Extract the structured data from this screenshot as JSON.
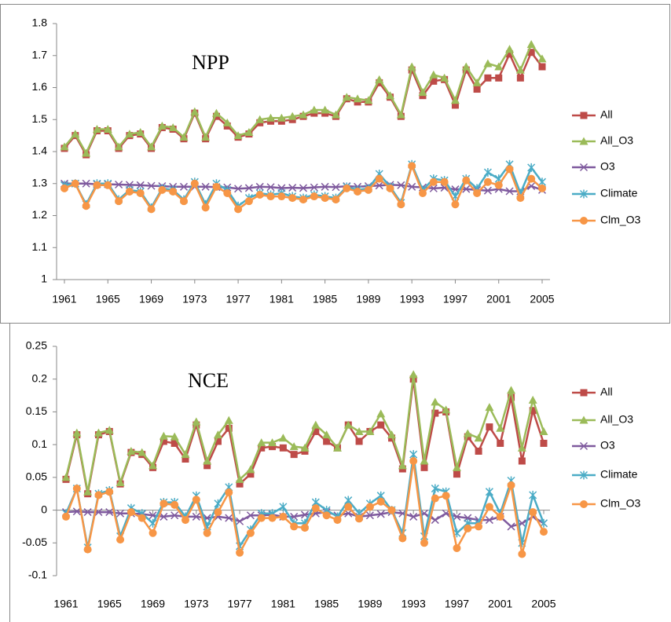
{
  "chart_data": [
    {
      "type": "line",
      "title": "NPP",
      "x": [
        1961,
        1962,
        1963,
        1964,
        1965,
        1966,
        1967,
        1968,
        1969,
        1970,
        1971,
        1972,
        1973,
        1974,
        1975,
        1976,
        1977,
        1978,
        1979,
        1980,
        1981,
        1982,
        1983,
        1984,
        1985,
        1986,
        1987,
        1988,
        1989,
        1990,
        1991,
        1992,
        1993,
        1994,
        1995,
        1996,
        1997,
        1998,
        1999,
        2000,
        2001,
        2002,
        2003,
        2004,
        2005
      ],
      "xlim": [
        1961,
        2005
      ],
      "xticks": [
        1961,
        1965,
        1969,
        1973,
        1977,
        1981,
        1985,
        1989,
        1993,
        1997,
        2001,
        2005
      ],
      "ylim": [
        1,
        1.8
      ],
      "yticks": [
        1.8,
        1.7,
        1.6,
        1.5,
        1.4,
        1.3,
        1.2,
        1.1,
        1
      ],
      "legend": "right",
      "series": [
        {
          "name": "All",
          "color": "#be4b48",
          "marker": "square",
          "values": [
            1.41,
            1.45,
            1.39,
            1.465,
            1.465,
            1.41,
            1.45,
            1.455,
            1.41,
            1.475,
            1.47,
            1.44,
            1.52,
            1.44,
            1.51,
            1.48,
            1.445,
            1.455,
            1.49,
            1.495,
            1.495,
            1.5,
            1.51,
            1.52,
            1.52,
            1.51,
            1.565,
            1.555,
            1.555,
            1.615,
            1.57,
            1.51,
            1.655,
            1.575,
            1.62,
            1.625,
            1.545,
            1.655,
            1.595,
            1.63,
            1.63,
            1.705,
            1.63,
            1.71,
            1.665
          ]
        },
        {
          "name": "All_O3",
          "color": "#9bbb59",
          "marker": "triangle",
          "values": [
            1.415,
            1.455,
            1.395,
            1.47,
            1.47,
            1.415,
            1.455,
            1.46,
            1.415,
            1.48,
            1.475,
            1.445,
            1.525,
            1.445,
            1.52,
            1.49,
            1.45,
            1.46,
            1.5,
            1.505,
            1.505,
            1.51,
            1.515,
            1.53,
            1.53,
            1.515,
            1.57,
            1.565,
            1.56,
            1.625,
            1.575,
            1.515,
            1.665,
            1.585,
            1.64,
            1.63,
            1.56,
            1.665,
            1.615,
            1.675,
            1.665,
            1.72,
            1.655,
            1.735,
            1.69
          ]
        },
        {
          "name": "O3",
          "color": "#7f5a9e",
          "marker": "x",
          "values": [
            1.3,
            1.3,
            1.3,
            1.298,
            1.298,
            1.297,
            1.296,
            1.295,
            1.293,
            1.292,
            1.29,
            1.29,
            1.29,
            1.29,
            1.289,
            1.288,
            1.284,
            1.286,
            1.29,
            1.289,
            1.286,
            1.287,
            1.286,
            1.288,
            1.29,
            1.289,
            1.292,
            1.29,
            1.292,
            1.294,
            1.296,
            1.295,
            1.29,
            1.288,
            1.285,
            1.287,
            1.282,
            1.283,
            1.28,
            1.278,
            1.283,
            1.276,
            1.276,
            1.292,
            1.28
          ]
        },
        {
          "name": "Climate",
          "color": "#4bacc6",
          "marker": "star",
          "values": [
            1.295,
            1.3,
            1.235,
            1.3,
            1.3,
            1.25,
            1.28,
            1.275,
            1.225,
            1.285,
            1.28,
            1.25,
            1.305,
            1.235,
            1.3,
            1.28,
            1.23,
            1.255,
            1.27,
            1.265,
            1.27,
            1.26,
            1.255,
            1.265,
            1.26,
            1.255,
            1.29,
            1.28,
            1.285,
            1.33,
            1.29,
            1.24,
            1.36,
            1.28,
            1.315,
            1.31,
            1.26,
            1.315,
            1.285,
            1.335,
            1.315,
            1.36,
            1.27,
            1.35,
            1.305
          ]
        },
        {
          "name": "Clm_O3",
          "color": "#f79646",
          "marker": "circle",
          "values": [
            1.285,
            1.3,
            1.23,
            1.295,
            1.295,
            1.245,
            1.275,
            1.27,
            1.22,
            1.28,
            1.275,
            1.245,
            1.3,
            1.225,
            1.29,
            1.27,
            1.22,
            1.245,
            1.265,
            1.26,
            1.26,
            1.255,
            1.25,
            1.26,
            1.255,
            1.25,
            1.285,
            1.275,
            1.28,
            1.315,
            1.285,
            1.235,
            1.355,
            1.27,
            1.305,
            1.305,
            1.235,
            1.31,
            1.27,
            1.305,
            1.295,
            1.345,
            1.255,
            1.315,
            1.285
          ]
        }
      ]
    },
    {
      "type": "line",
      "title": "NCE",
      "x": [
        1961,
        1962,
        1963,
        1964,
        1965,
        1966,
        1967,
        1968,
        1969,
        1970,
        1971,
        1972,
        1973,
        1974,
        1975,
        1976,
        1977,
        1978,
        1979,
        1980,
        1981,
        1982,
        1983,
        1984,
        1985,
        1986,
        1987,
        1988,
        1989,
        1990,
        1991,
        1992,
        1993,
        1994,
        1995,
        1996,
        1997,
        1998,
        1999,
        2000,
        2001,
        2002,
        2003,
        2004,
        2005
      ],
      "xlim": [
        1961,
        2005
      ],
      "xticks": [
        1961,
        1965,
        1969,
        1973,
        1977,
        1981,
        1985,
        1989,
        1993,
        1997,
        2001,
        2005
      ],
      "ylim": [
        -0.1,
        0.25
      ],
      "yticks": [
        0.25,
        0.2,
        0.15,
        0.1,
        0.05,
        0,
        -0.05,
        -0.1
      ],
      "legend": "right",
      "series": [
        {
          "name": "All",
          "color": "#be4b48",
          "marker": "square",
          "values": [
            0.047,
            0.115,
            0.025,
            0.115,
            0.12,
            0.04,
            0.088,
            0.085,
            0.065,
            0.105,
            0.102,
            0.078,
            0.13,
            0.068,
            0.105,
            0.125,
            0.04,
            0.055,
            0.095,
            0.097,
            0.095,
            0.085,
            0.09,
            0.12,
            0.105,
            0.095,
            0.13,
            0.105,
            0.12,
            0.13,
            0.11,
            0.063,
            0.2,
            0.065,
            0.148,
            0.15,
            0.055,
            0.112,
            0.09,
            0.127,
            0.102,
            0.172,
            0.075,
            0.152,
            0.102
          ]
        },
        {
          "name": "All_O3",
          "color": "#9bbb59",
          "marker": "triangle",
          "values": [
            0.05,
            0.118,
            0.028,
            0.118,
            0.122,
            0.042,
            0.09,
            0.088,
            0.068,
            0.113,
            0.112,
            0.085,
            0.135,
            0.075,
            0.115,
            0.137,
            0.047,
            0.062,
            0.103,
            0.103,
            0.11,
            0.097,
            0.095,
            0.13,
            0.115,
            0.095,
            0.13,
            0.12,
            0.12,
            0.147,
            0.115,
            0.068,
            0.207,
            0.075,
            0.165,
            0.153,
            0.065,
            0.117,
            0.11,
            0.157,
            0.125,
            0.183,
            0.095,
            0.168,
            0.12
          ]
        },
        {
          "name": "O3",
          "color": "#7f5a9e",
          "marker": "x",
          "values": [
            -0.003,
            -0.002,
            -0.003,
            -0.003,
            -0.003,
            -0.005,
            -0.005,
            -0.006,
            -0.008,
            -0.01,
            -0.008,
            -0.01,
            -0.01,
            -0.012,
            -0.01,
            -0.012,
            -0.017,
            -0.008,
            -0.008,
            -0.007,
            -0.01,
            -0.01,
            -0.007,
            -0.005,
            -0.003,
            -0.008,
            -0.005,
            -0.01,
            -0.008,
            -0.006,
            -0.003,
            -0.005,
            -0.01,
            -0.005,
            -0.015,
            -0.005,
            -0.01,
            -0.012,
            -0.015,
            -0.015,
            -0.01,
            -0.025,
            -0.02,
            -0.01,
            -0.02
          ]
        },
        {
          "name": "Climate",
          "color": "#4bacc6",
          "marker": "star",
          "values": [
            -0.005,
            0.033,
            -0.057,
            0.025,
            0.03,
            -0.04,
            0.003,
            -0.005,
            -0.02,
            0.012,
            0.012,
            -0.01,
            0.022,
            -0.025,
            0.01,
            0.035,
            -0.055,
            -0.03,
            -0.005,
            -0.005,
            0.005,
            -0.02,
            -0.02,
            0.012,
            0,
            -0.01,
            0.015,
            -0.005,
            0.01,
            0.022,
            0,
            -0.035,
            0.085,
            -0.04,
            0.033,
            0.028,
            -0.035,
            -0.02,
            -0.02,
            0.028,
            -0.005,
            0.045,
            -0.05,
            0.023,
            -0.02
          ]
        },
        {
          "name": "Clm_O3",
          "color": "#f79646",
          "marker": "circle",
          "values": [
            -0.01,
            0.033,
            -0.06,
            0.023,
            0.028,
            -0.045,
            -0.003,
            -0.012,
            -0.035,
            0.01,
            0.008,
            -0.015,
            0.016,
            -0.035,
            -0.003,
            0.027,
            -0.065,
            -0.035,
            -0.012,
            -0.012,
            -0.01,
            -0.025,
            -0.027,
            0.003,
            -0.008,
            -0.015,
            0.005,
            -0.013,
            0.005,
            0.013,
            0,
            -0.043,
            0.075,
            -0.05,
            0.018,
            0.022,
            -0.058,
            -0.028,
            -0.025,
            0.005,
            -0.01,
            0.038,
            -0.067,
            -0.003,
            -0.033
          ]
        }
      ]
    }
  ]
}
